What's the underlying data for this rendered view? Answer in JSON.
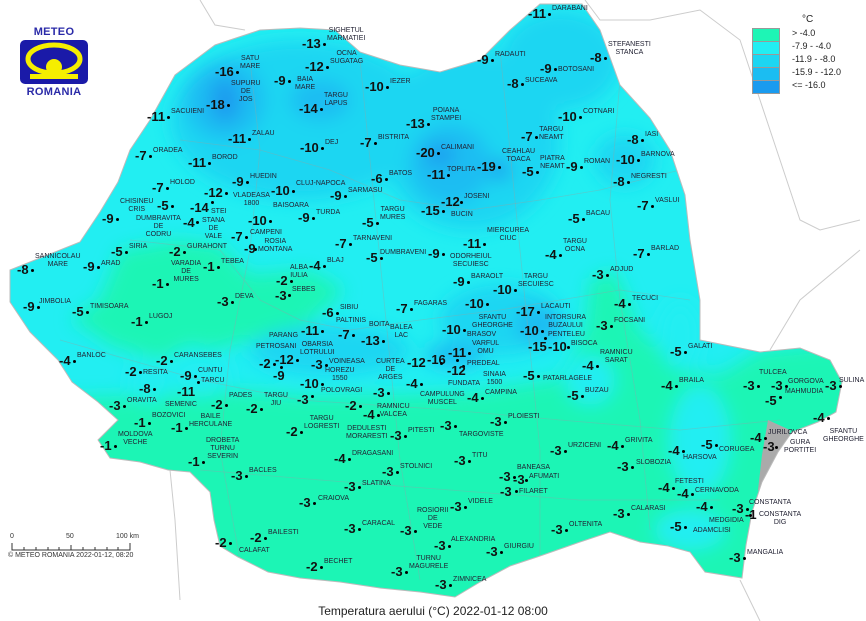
{
  "logo": {
    "top": "METEO",
    "bottom": "ROMANIA"
  },
  "title": "Temperatura aerului (°C) 2022-01-12 08:00",
  "copyright": "© METEO ROMANIA 2022-01-12, 08:20",
  "scale": {
    "ticks": [
      "0",
      "50",
      "100 km"
    ]
  },
  "legend": {
    "unit": "°C",
    "classes": [
      {
        "label": "> -4.0",
        "color": "#1ef5b5"
      },
      {
        "label": "-7.9 - -4.0",
        "color": "#22eef2"
      },
      {
        "label": "-11.9 - -8.0",
        "color": "#1dd6f2"
      },
      {
        "label": "-15.9 - -12.0",
        "color": "#1bbdf2"
      },
      {
        "label": "<= -16.0",
        "color": "#1a9bef"
      }
    ]
  },
  "stations": [
    {
      "name": "SATU\nMARE",
      "value": "-16"
    },
    {
      "name": "SUPURU\nDE\nJOS",
      "value": "-18"
    },
    {
      "name": "SACUIENI",
      "value": "-11"
    },
    {
      "name": "ZALAU",
      "value": "-11"
    },
    {
      "name": "ORADEA",
      "value": "-7"
    },
    {
      "name": "BOROD",
      "value": "-11"
    },
    {
      "name": "HUEDIN",
      "value": "-9"
    },
    {
      "name": "VLADEASA\n1800",
      "value": "-12"
    },
    {
      "name": "HOLOD",
      "value": "-7"
    },
    {
      "name": "STANA\nDE\nVALE",
      "value": "-14"
    },
    {
      "name": "DUMBRAVITA\nDE\nCODRU",
      "value": "-5"
    },
    {
      "name": "STEI",
      "value": "-4"
    },
    {
      "name": "CHISINEU\nCRIS",
      "value": "-9"
    },
    {
      "name": "BAISOARA",
      "value": "-10"
    },
    {
      "name": "CAMPENI",
      "value": "-7"
    },
    {
      "name": "ROSIA\nMONTANA",
      "value": "-9"
    },
    {
      "name": "SIRIA",
      "value": "-5"
    },
    {
      "name": "GURAHONT",
      "value": "-2"
    },
    {
      "name": "SANNICOLAU\nMARE",
      "value": "-8"
    },
    {
      "name": "ARAD",
      "value": "-9"
    },
    {
      "name": "TEBEA",
      "value": "-1"
    },
    {
      "name": "VARADIA\nDE\nMURES",
      "value": "-1"
    },
    {
      "name": "BAIA\nMARE",
      "value": "-9"
    },
    {
      "name": "SIGHETUL\nMARMATIEI",
      "value": "-13"
    },
    {
      "name": "OCNA\nSUGATAG",
      "value": "-12"
    },
    {
      "name": "TARGU\nLAPUS",
      "value": "-14"
    },
    {
      "name": "DEJ",
      "value": "-10"
    },
    {
      "name": "CLUJ-NAPOCA",
      "value": "-10"
    },
    {
      "name": "IEZER",
      "value": "-10"
    },
    {
      "name": "BISTRITA",
      "value": "-7"
    },
    {
      "name": "POIANA\nSTAMPEI",
      "value": "-13"
    },
    {
      "name": "CALIMANI",
      "value": "-20"
    },
    {
      "name": "BATOS",
      "value": "-6"
    },
    {
      "name": "TOPLITA",
      "value": "-11"
    },
    {
      "name": "SARMASU",
      "value": "-9"
    },
    {
      "name": "TURDA",
      "value": "-9"
    },
    {
      "name": "TARGU\nMURES",
      "value": "-5"
    },
    {
      "name": "BUCIN",
      "value": "-15"
    },
    {
      "name": "JOSENI",
      "value": "-12"
    },
    {
      "name": "CEAHLAU\nTOACA",
      "value": "-19"
    },
    {
      "name": "TARNAVENI",
      "value": "-7"
    },
    {
      "name": "ODORHEIUL\nSECUIESC",
      "value": "-9"
    },
    {
      "name": "MIERCUREA\nCIUC",
      "value": "-11"
    },
    {
      "name": "DUMBRAVENI",
      "value": "-5"
    },
    {
      "name": "DARABANI",
      "value": "-11"
    },
    {
      "name": "RADAUTI",
      "value": "-9"
    },
    {
      "name": "BOTOSANI",
      "value": "-9"
    },
    {
      "name": "SUCEAVA",
      "value": "-8"
    },
    {
      "name": "TARGU\nNEAMT",
      "value": "-7"
    },
    {
      "name": "PIATRA\nNEAMT",
      "value": "-5"
    },
    {
      "name": "ROMAN",
      "value": "-9"
    },
    {
      "name": "COTNARI",
      "value": "-10"
    },
    {
      "name": "BACAU",
      "value": "-5"
    },
    {
      "name": "TARGU\nOCNA",
      "value": "-4"
    },
    {
      "name": "STEFANESTI\nSTANCA",
      "value": "-8"
    },
    {
      "name": "IASI",
      "value": "-8"
    },
    {
      "name": "BARNOVA",
      "value": "-10"
    },
    {
      "name": "NEGRESTI",
      "value": "-8"
    },
    {
      "name": "VASLUI",
      "value": "-7"
    },
    {
      "name": "BARLAD",
      "value": "-7"
    },
    {
      "name": "ADJUD",
      "value": "-3"
    },
    {
      "name": "BLAJ",
      "value": "-4"
    },
    {
      "name": "ALBA\nIULIA",
      "value": "-2"
    },
    {
      "name": "SEBES",
      "value": "-3"
    },
    {
      "name": "BARAOLT",
      "value": "-9"
    },
    {
      "name": "TARGU\nSECUIESC",
      "value": "-10"
    },
    {
      "name": "SFANTU\nGHEORGHE",
      "value": "-10"
    },
    {
      "name": "DEVA",
      "value": "-3"
    },
    {
      "name": "JIMBOLIA",
      "value": "-9"
    },
    {
      "name": "TIMISOARA",
      "value": "-5"
    },
    {
      "name": "LUGOJ",
      "value": "-1"
    },
    {
      "name": "SIBIU",
      "value": "-6"
    },
    {
      "name": "FAGARAS",
      "value": "-7"
    },
    {
      "name": "LACAUTI",
      "value": "-17"
    },
    {
      "name": "INTORSURA\nBUZAULUI",
      "value": "-10"
    },
    {
      "name": "PENTELEU",
      "value": "-15"
    },
    {
      "name": "BISOCA",
      "value": "-10"
    },
    {
      "name": "BRASOV",
      "value": "-10"
    },
    {
      "name": "PALTINIS",
      "value": "-11"
    },
    {
      "name": "BOITA",
      "value": "-7"
    },
    {
      "name": "BALEA\nLAC",
      "value": "-13"
    },
    {
      "name": "VARFUL\nOMU",
      "value": "-11"
    },
    {
      "name": "PREDEAL",
      "value": "-16"
    },
    {
      "name": "FUNDATA",
      "value": "-12"
    },
    {
      "name": "SINAIA\n1500",
      "value": "-12"
    },
    {
      "name": "OBARSIA\nLOTRULUI",
      "value": "-12"
    },
    {
      "name": "PETROSANI",
      "value": "-2"
    },
    {
      "name": "PARANG",
      "value": "-9"
    },
    {
      "name": "VOINEASA",
      "value": "-3"
    },
    {
      "name": "HOREZU\n1550",
      "value": "-10"
    },
    {
      "name": "POLOVRAGI",
      "value": "-3"
    },
    {
      "name": "CURTEA\nDE\nARGES",
      "value": "-3"
    },
    {
      "name": "CAMPULUNG\nMUSCEL",
      "value": "-4"
    },
    {
      "name": "RAMNICU\nVALCEA",
      "value": "-2"
    },
    {
      "name": "DEDULESTI\nMORARESTI",
      "value": "-4"
    },
    {
      "name": "CAMPINA",
      "value": "-4"
    },
    {
      "name": "PATARLAGELE",
      "value": "-5"
    },
    {
      "name": "BUZAU",
      "value": "-5"
    },
    {
      "name": "RAMNICU\nSARAT",
      "value": "-4"
    },
    {
      "name": "FOCSANI",
      "value": "-3"
    },
    {
      "name": "TECUCI",
      "value": "-4"
    },
    {
      "name": "GALATI",
      "value": "-5"
    },
    {
      "name": "BRAILA",
      "value": "-4"
    },
    {
      "name": "TULCEA",
      "value": "-3"
    },
    {
      "name": "GORGOVA",
      "value": "-3"
    },
    {
      "name": "MAHMUDIA",
      "value": "-5"
    },
    {
      "name": "SULINA",
      "value": "-3"
    },
    {
      "name": "SFANTU\nGHEORGHE",
      "value": "-4"
    },
    {
      "name": "JURILOVCA",
      "value": "-4"
    },
    {
      "name": "GURA\nPORTITEI",
      "value": "-3"
    },
    {
      "name": "CORUGEA",
      "value": "-5"
    },
    {
      "name": "HARSOVA",
      "value": "-4"
    },
    {
      "name": "GRIVITA",
      "value": "-4"
    },
    {
      "name": "URZICENI",
      "value": "-3"
    },
    {
      "name": "SLOBOZIA",
      "value": "-3"
    },
    {
      "name": "FETESTI",
      "value": "-4"
    },
    {
      "name": "CERNAVODA",
      "value": "-4"
    },
    {
      "name": "MEDGIDIA",
      "value": "-4"
    },
    {
      "name": "CONSTANTA",
      "value": "-3"
    },
    {
      "name": "CONSTANTA\nDIG",
      "value": "-1"
    },
    {
      "name": "CALARASI",
      "value": "-3"
    },
    {
      "name": "ADAMCLISI",
      "value": "-5"
    },
    {
      "name": "MANGALIA",
      "value": "-3"
    },
    {
      "name": "OLTENITA",
      "value": "-3"
    },
    {
      "name": "GIURGIU",
      "value": "-3"
    },
    {
      "name": "ZIMNICEA",
      "value": "-3"
    },
    {
      "name": "ALEXANDRIA",
      "value": "-3"
    },
    {
      "name": "TURNU\nMAGURELE",
      "value": "-3"
    },
    {
      "name": "ROSIORII\nDE\nVEDE",
      "value": "-3"
    },
    {
      "name": "VIDELE",
      "value": "-3"
    },
    {
      "name": "CARACAL",
      "value": "-3"
    },
    {
      "name": "BECHET",
      "value": "-2"
    },
    {
      "name": "CRAIOVA",
      "value": "-3"
    },
    {
      "name": "SLATINA",
      "value": "-3"
    },
    {
      "name": "STOLNICI",
      "value": "-3"
    },
    {
      "name": "DRAGASANI",
      "value": "-4"
    },
    {
      "name": "PITESTI",
      "value": "-3"
    },
    {
      "name": "TARGOVISTE",
      "value": "-3"
    },
    {
      "name": "PLOIESTI",
      "value": "-3"
    },
    {
      "name": "TITU",
      "value": "-3"
    },
    {
      "name": "BANEASA",
      "value": "-3"
    },
    {
      "name": "AFUMATI",
      "value": "-3"
    },
    {
      "name": "FILARET",
      "value": "-3"
    },
    {
      "name": "TARGU\nLOGRESTI",
      "value": "-2"
    },
    {
      "name": "TARGU\nJIU",
      "value": "-2"
    },
    {
      "name": "PADES",
      "value": "-2"
    },
    {
      "name": "BAILE\nHERCULANE",
      "value": "-1"
    },
    {
      "name": "BOZOVICI",
      "value": "-1"
    },
    {
      "name": "ORAVITA",
      "value": "-3"
    },
    {
      "name": "MOLDOVA\nVECHE",
      "value": "-1"
    },
    {
      "name": "DROBETA\nTURNU\nSEVERIN",
      "value": "-1"
    },
    {
      "name": "BACLES",
      "value": "-3"
    },
    {
      "name": "CALAFAT",
      "value": "-2"
    },
    {
      "name": "BAILESTI",
      "value": "-2"
    },
    {
      "name": "CARANSEBES",
      "value": "-2"
    },
    {
      "name": "RESITA",
      "value": "-2"
    },
    {
      "name": "CUNTU",
      "value": "-9"
    },
    {
      "name": "TARCU",
      "value": "-11"
    },
    {
      "name": "SEMENIC",
      "value": "-8"
    },
    {
      "name": "BANLOC",
      "value": "-4"
    }
  ]
}
